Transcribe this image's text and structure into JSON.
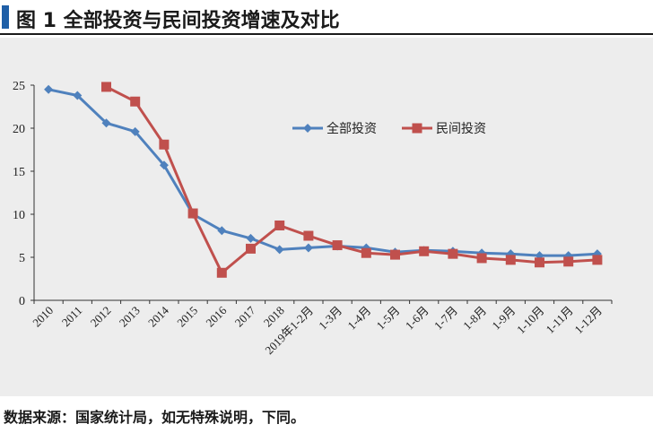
{
  "figure": {
    "title": "图 1  全部投资与民间投资增速及对比",
    "source": "数据来源：国家统计局，如无特殊说明，下同。"
  },
  "chart_data": {
    "type": "line",
    "categories": [
      "2010",
      "2011",
      "2012",
      "2013",
      "2014",
      "2015",
      "2016",
      "2017",
      "2018",
      "2019年1-2月",
      "1-3月",
      "1-4月",
      "1-5月",
      "1-6月",
      "1-7月",
      "1-8月",
      "1-9月",
      "1-10月",
      "1-11月",
      "1-12月"
    ],
    "series": [
      {
        "name": "全部投资",
        "color": "#4f81bd",
        "marker": "diamond",
        "values": [
          24.5,
          23.8,
          20.6,
          19.6,
          15.7,
          10.0,
          8.1,
          7.2,
          5.9,
          6.1,
          6.3,
          6.1,
          5.6,
          5.8,
          5.7,
          5.5,
          5.4,
          5.2,
          5.2,
          5.4
        ]
      },
      {
        "name": "民间投资",
        "color": "#c0504d",
        "marker": "square",
        "values": [
          null,
          null,
          24.8,
          23.1,
          18.1,
          10.1,
          3.2,
          6.0,
          8.7,
          7.5,
          6.4,
          5.5,
          5.3,
          5.7,
          5.4,
          4.9,
          4.7,
          4.4,
          4.5,
          4.7
        ]
      }
    ],
    "y_ticks": [
      "0",
      "5",
      "10",
      "15",
      "20",
      "25"
    ],
    "ylim": [
      0,
      25
    ],
    "grid": false,
    "legend": "top-right"
  }
}
